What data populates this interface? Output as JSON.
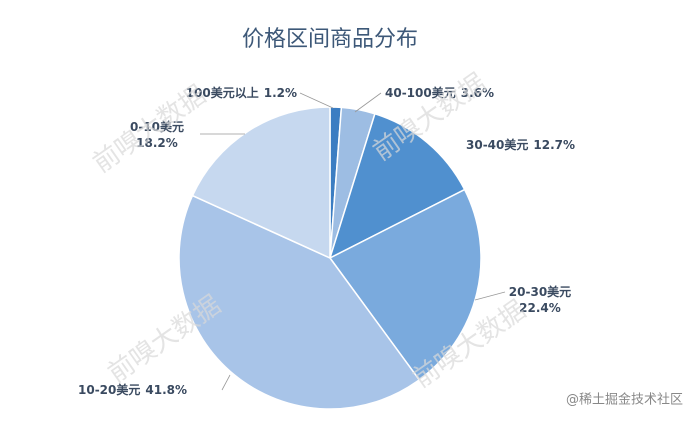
{
  "chart_data": {
    "type": "pie",
    "title": "价格区间商品分布",
    "categories": [
      "100美元以上",
      "40-100美元",
      "30-40美元",
      "20-30美元",
      "10-20美元",
      "0-10美元"
    ],
    "values": [
      1.2,
      3.6,
      12.7,
      22.4,
      41.8,
      18.2
    ],
    "value_labels": [
      "1.2%",
      "3.6%",
      "12.7%",
      "22.4%",
      "41.8%",
      "18.2%"
    ],
    "colors": [
      "#3b7dc2",
      "#9dbde3",
      "#5090cf",
      "#7aaadd",
      "#a8c4e8",
      "#c6d8ef"
    ]
  },
  "watermarks": [
    "前嗅大数据",
    "前嗅大数据",
    "前嗅大数据",
    "前嗅大数据"
  ],
  "footer": "@稀土掘金技术社区"
}
